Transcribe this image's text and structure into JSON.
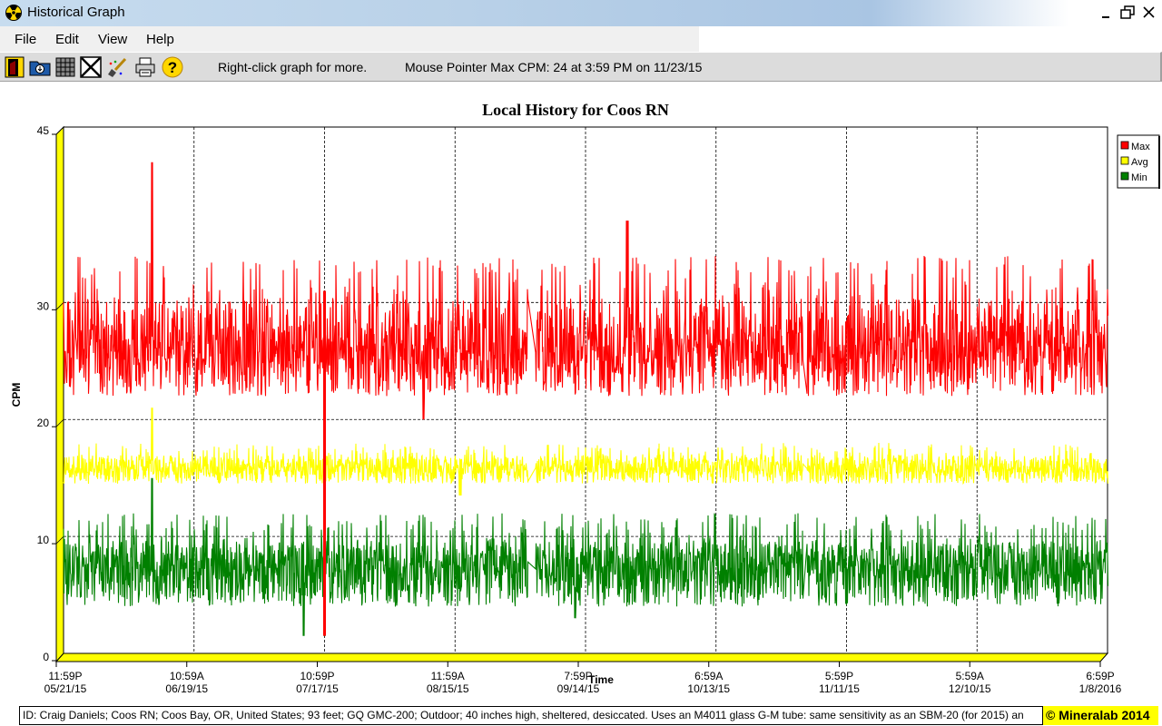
{
  "window": {
    "title": "Historical Graph"
  },
  "menu": [
    "File",
    "Edit",
    "View",
    "Help"
  ],
  "toolbar": {
    "icons": [
      "exit-icon",
      "open-folder-icon",
      "table-icon",
      "close-x-icon",
      "clear-brush-icon",
      "print-icon",
      "help-icon"
    ],
    "hint": "Right-click graph for more.",
    "status": "Mouse Pointer Max CPM: 24  at 3:59 PM on 11/23/15"
  },
  "footer": {
    "info": "ID: Craig Daniels; Coos RN; Coos Bay, OR, United States; 93 feet; GQ GMC-200; Outdoor; 40 inches high, sheltered, desiccated. Uses an M4011 glass G-M tube: same sensitivity as an SBM-20 (for 2015) an",
    "brand": "© Mineralab 2014"
  },
  "chart_data": {
    "type": "line",
    "title": "Local History for Coos RN",
    "xlabel": "Time",
    "ylabel": "CPM",
    "ylim": [
      0,
      45
    ],
    "y_ticks": [
      "45",
      "30",
      "20",
      "10",
      "0"
    ],
    "x_ticks": [
      {
        "time": "11:59P",
        "date": "05/21/15"
      },
      {
        "time": "10:59A",
        "date": "06/19/15"
      },
      {
        "time": "10:59P",
        "date": "07/17/15"
      },
      {
        "time": "11:59A",
        "date": "08/15/15"
      },
      {
        "time": "7:59P",
        "date": "09/14/15"
      },
      {
        "time": "6:59A",
        "date": "10/13/15"
      },
      {
        "time": "5:59P",
        "date": "11/11/15"
      },
      {
        "time": "5:59A",
        "date": "12/10/15"
      },
      {
        "time": "6:59P",
        "date": "1/8/2016"
      }
    ],
    "grid": true,
    "legend_position": "right",
    "series": [
      {
        "name": "Max",
        "color": "#ff0000",
        "baseline": 26,
        "low": 22,
        "high": 34,
        "spikes": [
          [
            0.085,
            42
          ],
          [
            0.54,
            37
          ],
          [
            0.345,
            20
          ]
        ]
      },
      {
        "name": "Avg",
        "color": "#ffff00",
        "baseline": 16,
        "low": 14.5,
        "high": 18,
        "spikes": [
          [
            0.085,
            21
          ],
          [
            0.38,
            13.5
          ]
        ]
      },
      {
        "name": "Min",
        "color": "#008000",
        "baseline": 8,
        "low": 4,
        "high": 12,
        "spikes": [
          [
            0.085,
            15
          ],
          [
            0.23,
            1.5
          ],
          [
            0.25,
            1.5
          ],
          [
            0.49,
            3
          ],
          [
            0.71,
            3
          ]
        ]
      }
    ],
    "gaps": [
      [
        0.445,
        0.452
      ],
      [
        0.708,
        0.712
      ]
    ],
    "annotations": [
      {
        "x": 0.25,
        "from": 1.5,
        "to": 31,
        "series": "Max"
      }
    ]
  }
}
